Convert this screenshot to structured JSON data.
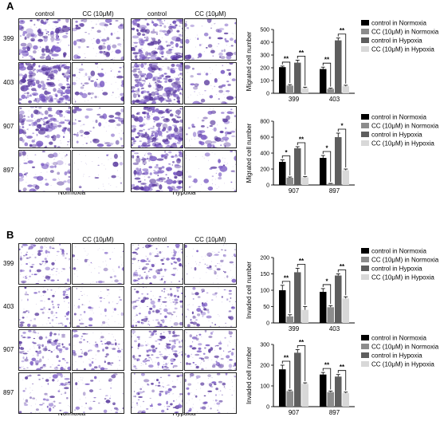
{
  "panels": [
    {
      "letter": "A",
      "col_headers": [
        "control",
        "CC (10μM)",
        "control",
        "CC (10μM)"
      ],
      "row_labels": [
        "399",
        "403",
        "907",
        "897"
      ],
      "conditions": [
        "Normoxia",
        "Hypoxia"
      ],
      "stain_density": [
        [
          0.55,
          0.25,
          0.7,
          0.2
        ],
        [
          0.8,
          0.2,
          0.95,
          0.18
        ],
        [
          0.55,
          0.22,
          0.8,
          0.25
        ],
        [
          0.25,
          0.05,
          0.65,
          0.12
        ]
      ]
    },
    {
      "letter": "B",
      "col_headers": [
        "control",
        "CC (10μM)",
        "control",
        "CC (10μM)"
      ],
      "row_labels": [
        "399",
        "403",
        "907",
        "897"
      ],
      "conditions": [
        "Normoxia",
        "Hypoxia"
      ],
      "stain_density": [
        [
          0.4,
          0.1,
          0.45,
          0.15
        ],
        [
          0.3,
          0.15,
          0.45,
          0.3
        ],
        [
          0.45,
          0.3,
          0.55,
          0.35
        ],
        [
          0.25,
          0.15,
          0.3,
          0.2
        ]
      ]
    }
  ],
  "legend_entries": [
    "control in Normoxia",
    "CC (10μM) in Normoxia",
    "control in Hypoxia",
    "CC (10μM) in Hypoxia"
  ],
  "series_colors": [
    "#000000",
    "#8c8c8c",
    "#5e5e5e",
    "#d8d8d8"
  ],
  "chart_data": [
    {
      "type": "bar",
      "ylabel": "Migrated cell number",
      "categories": [
        "399",
        "403"
      ],
      "ylim": [
        0,
        500
      ],
      "yticks": [
        0,
        100,
        200,
        300,
        400,
        500
      ],
      "series": [
        {
          "name": "control in Normoxia",
          "values": [
            205,
            190
          ],
          "err": [
            8,
            15
          ]
        },
        {
          "name": "CC (10μM) in Normoxia",
          "values": [
            60,
            35
          ],
          "err": [
            8,
            5
          ]
        },
        {
          "name": "control in Hypoxia",
          "values": [
            240,
            415
          ],
          "err": [
            20,
            18
          ]
        },
        {
          "name": "CC (10μM) in Hypoxia",
          "values": [
            40,
            55
          ],
          "err": [
            8,
            8
          ]
        }
      ],
      "significance": [
        {
          "cat": 0,
          "from": 0,
          "to": 1,
          "label": "**"
        },
        {
          "cat": 0,
          "from": 2,
          "to": 3,
          "label": "**"
        },
        {
          "cat": 1,
          "from": 0,
          "to": 1,
          "label": "**"
        },
        {
          "cat": 1,
          "from": 2,
          "to": 3,
          "label": "**"
        }
      ]
    },
    {
      "type": "bar",
      "ylabel": "Migrated cell number",
      "categories": [
        "907",
        "897"
      ],
      "ylim": [
        0,
        800
      ],
      "yticks": [
        0,
        200,
        400,
        600,
        800
      ],
      "series": [
        {
          "name": "control in Normoxia",
          "values": [
            290,
            340
          ],
          "err": [
            25,
            30
          ]
        },
        {
          "name": "CC (10μM) in Normoxia",
          "values": [
            90,
            15
          ],
          "err": [
            10,
            5
          ]
        },
        {
          "name": "control in Hypoxia",
          "values": [
            460,
            600
          ],
          "err": [
            20,
            50
          ]
        },
        {
          "name": "CC (10μM) in Hypoxia",
          "values": [
            95,
            185
          ],
          "err": [
            10,
            15
          ]
        }
      ],
      "significance": [
        {
          "cat": 0,
          "from": 0,
          "to": 1,
          "label": "*"
        },
        {
          "cat": 0,
          "from": 2,
          "to": 3,
          "label": "**"
        },
        {
          "cat": 1,
          "from": 0,
          "to": 1,
          "label": "*"
        },
        {
          "cat": 1,
          "from": 2,
          "to": 3,
          "label": "*"
        }
      ]
    },
    {
      "type": "bar",
      "ylabel": "Invaded cell number",
      "categories": [
        "399",
        "403"
      ],
      "ylim": [
        0,
        200
      ],
      "yticks": [
        0,
        50,
        100,
        150,
        200
      ],
      "series": [
        {
          "name": "control in Normoxia",
          "values": [
            100,
            95
          ],
          "err": [
            15,
            10
          ]
        },
        {
          "name": "CC (10μM) in Normoxia",
          "values": [
            20,
            48
          ],
          "err": [
            5,
            5
          ]
        },
        {
          "name": "control in Hypoxia",
          "values": [
            155,
            145
          ],
          "err": [
            12,
            5
          ]
        },
        {
          "name": "CC (10μM) in Hypoxia",
          "values": [
            40,
            75
          ],
          "err": [
            10,
            5
          ]
        }
      ],
      "significance": [
        {
          "cat": 0,
          "from": 0,
          "to": 1,
          "label": "**"
        },
        {
          "cat": 0,
          "from": 2,
          "to": 3,
          "label": "**"
        },
        {
          "cat": 1,
          "from": 0,
          "to": 1,
          "label": "*"
        },
        {
          "cat": 1,
          "from": 2,
          "to": 3,
          "label": "**"
        }
      ]
    },
    {
      "type": "bar",
      "ylabel": "Invaded cell number",
      "categories": [
        "907",
        "897"
      ],
      "ylim": [
        0,
        300
      ],
      "yticks": [
        0,
        100,
        200,
        300
      ],
      "series": [
        {
          "name": "control in Normoxia",
          "values": [
            180,
            155
          ],
          "err": [
            20,
            10
          ]
        },
        {
          "name": "CC (10μM) in Normoxia",
          "values": [
            75,
            70
          ],
          "err": [
            5,
            5
          ]
        },
        {
          "name": "control in Hypoxia",
          "values": [
            260,
            145
          ],
          "err": [
            15,
            10
          ]
        },
        {
          "name": "CC (10μM) in Hypoxia",
          "values": [
            110,
            65
          ],
          "err": [
            5,
            5
          ]
        }
      ],
      "significance": [
        {
          "cat": 0,
          "from": 0,
          "to": 1,
          "label": "**"
        },
        {
          "cat": 0,
          "from": 2,
          "to": 3,
          "label": "**"
        },
        {
          "cat": 1,
          "from": 0,
          "to": 1,
          "label": "**"
        },
        {
          "cat": 1,
          "from": 2,
          "to": 3,
          "label": "**"
        }
      ]
    }
  ]
}
